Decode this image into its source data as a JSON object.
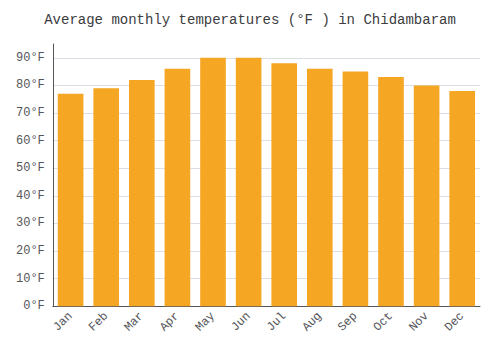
{
  "chart_data": {
    "type": "bar",
    "title": "Average monthly temperatures (°F ) in Chidambaram",
    "categories": [
      "Jan",
      "Feb",
      "Mar",
      "Apr",
      "May",
      "Jun",
      "Jul",
      "Aug",
      "Sep",
      "Oct",
      "Nov",
      "Dec"
    ],
    "values": [
      77,
      79,
      82,
      86,
      90,
      90,
      88,
      86,
      85,
      83,
      80,
      78
    ],
    "color": "#F5A623",
    "ylim": [
      0,
      95
    ],
    "yticks": [
      {
        "value": 0,
        "label": "0°F"
      },
      {
        "value": 10,
        "label": "10°F"
      },
      {
        "value": 20,
        "label": "20°F"
      },
      {
        "value": 30,
        "label": "30°F"
      },
      {
        "value": 40,
        "label": "40°F"
      },
      {
        "value": 50,
        "label": "50°F"
      },
      {
        "value": 60,
        "label": "60°F"
      },
      {
        "value": 70,
        "label": "70°F"
      },
      {
        "value": 80,
        "label": "80°F"
      },
      {
        "value": 90,
        "label": "90°F"
      }
    ],
    "grid": true
  }
}
